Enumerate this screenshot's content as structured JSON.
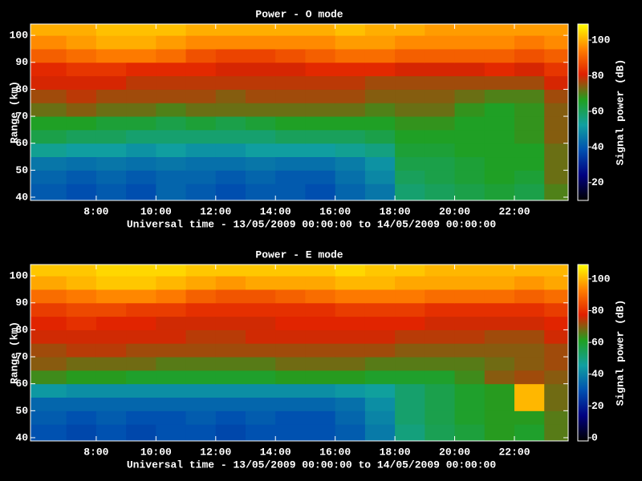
{
  "chart_data": [
    {
      "type": "heatmap",
      "title": "Power - O mode",
      "xlabel": "Universal time - 13/05/2009 00:00:00 to 14/05/2009 00:00:00",
      "ylabel": "Range (km)",
      "colorbar_label": "Signal power (dB)",
      "xlim": [
        5.8,
        23.8
      ],
      "ylim": [
        38.8,
        104.2
      ],
      "clim": [
        10,
        109
      ],
      "xticks": [
        {
          "value": 8,
          "label": "8:00"
        },
        {
          "value": 10,
          "label": "10:00"
        },
        {
          "value": 12,
          "label": "12:00"
        },
        {
          "value": 14,
          "label": "14:00"
        },
        {
          "value": 16,
          "label": "16:00"
        },
        {
          "value": 18,
          "label": "18:00"
        },
        {
          "value": 20,
          "label": "20:00"
        },
        {
          "value": 22,
          "label": "22:00"
        }
      ],
      "yticks": [
        40,
        50,
        60,
        70,
        80,
        90,
        100
      ],
      "cticks": [
        20,
        40,
        60,
        80,
        100
      ],
      "colormap": [
        "#000000",
        "#000080",
        "#0050b0",
        "#10a0a0",
        "#20a020",
        "#e02000",
        "#ff8000",
        "#ffff00"
      ],
      "xbins": [
        5.8,
        7,
        8,
        9,
        10,
        11,
        12,
        13,
        14,
        15,
        16,
        17,
        18,
        19,
        20,
        21,
        22,
        23,
        23.8
      ],
      "ybins": [
        38.8,
        45,
        50,
        55,
        60,
        65,
        70,
        75,
        80,
        85,
        90,
        95,
        100,
        104.2
      ],
      "z": [
        [
          40,
          38,
          40,
          38,
          42,
          40,
          38,
          40,
          40,
          38,
          42,
          45,
          58,
          60,
          62,
          64,
          62,
          70
        ],
        [
          42,
          40,
          42,
          40,
          42,
          42,
          40,
          42,
          40,
          40,
          44,
          48,
          60,
          62,
          64,
          66,
          64,
          72
        ],
        [
          45,
          44,
          45,
          44,
          45,
          44,
          44,
          45,
          44,
          44,
          46,
          50,
          62,
          62,
          64,
          66,
          66,
          72
        ],
        [
          54,
          52,
          52,
          50,
          52,
          50,
          50,
          52,
          52,
          52,
          54,
          56,
          64,
          64,
          66,
          66,
          66,
          72
        ],
        [
          62,
          60,
          60,
          58,
          58,
          58,
          58,
          58,
          60,
          60,
          60,
          62,
          66,
          66,
          66,
          66,
          68,
          74
        ],
        [
          66,
          66,
          64,
          64,
          62,
          64,
          62,
          64,
          66,
          66,
          66,
          66,
          68,
          68,
          66,
          66,
          68,
          74
        ],
        [
          72,
          74,
          72,
          72,
          70,
          72,
          72,
          72,
          72,
          72,
          72,
          70,
          72,
          72,
          68,
          66,
          68,
          74
        ],
        [
          76,
          78,
          76,
          76,
          76,
          76,
          74,
          76,
          76,
          76,
          76,
          74,
          74,
          74,
          72,
          70,
          70,
          76
        ],
        [
          80,
          80,
          80,
          78,
          78,
          78,
          78,
          78,
          78,
          78,
          78,
          76,
          76,
          76,
          76,
          76,
          76,
          80
        ],
        [
          82,
          84,
          84,
          82,
          82,
          82,
          80,
          80,
          80,
          82,
          82,
          82,
          80,
          80,
          80,
          82,
          80,
          84
        ],
        [
          90,
          92,
          94,
          94,
          92,
          88,
          86,
          86,
          88,
          90,
          92,
          92,
          90,
          90,
          90,
          90,
          88,
          90
        ],
        [
          96,
          98,
          100,
          100,
          98,
          96,
          96,
          96,
          96,
          96,
          98,
          98,
          96,
          96,
          96,
          96,
          94,
          96
        ],
        [
          100,
          100,
          102,
          102,
          102,
          100,
          100,
          100,
          100,
          100,
          102,
          100,
          100,
          98,
          98,
          98,
          98,
          98
        ]
      ]
    },
    {
      "type": "heatmap",
      "title": "Power - E mode",
      "xlabel": "Universal time - 13/05/2009 00:00:00 to 14/05/2009 00:00:00",
      "ylabel": "Range (km)",
      "colorbar_label": "Signal power (dB)",
      "xlim": [
        5.8,
        23.8
      ],
      "ylim": [
        38.8,
        104.2
      ],
      "clim": [
        -2,
        109
      ],
      "xticks": [
        {
          "value": 8,
          "label": "8:00"
        },
        {
          "value": 10,
          "label": "10:00"
        },
        {
          "value": 12,
          "label": "12:00"
        },
        {
          "value": 14,
          "label": "14:00"
        },
        {
          "value": 16,
          "label": "16:00"
        },
        {
          "value": 18,
          "label": "18:00"
        },
        {
          "value": 20,
          "label": "20:00"
        },
        {
          "value": 22,
          "label": "22:00"
        }
      ],
      "yticks": [
        40,
        50,
        60,
        70,
        80,
        90,
        100
      ],
      "cticks": [
        0,
        20,
        40,
        60,
        80,
        100
      ],
      "colormap": [
        "#000000",
        "#000080",
        "#0050b0",
        "#10a0a0",
        "#20a020",
        "#e02000",
        "#ff8000",
        "#ffff00"
      ],
      "xbins": [
        5.8,
        7,
        8,
        9,
        10,
        11,
        12,
        13,
        14,
        15,
        16,
        17,
        18,
        19,
        20,
        21,
        22,
        23,
        23.8
      ],
      "ybins": [
        38.8,
        45,
        50,
        55,
        60,
        65,
        70,
        75,
        80,
        85,
        90,
        95,
        100,
        104.2
      ],
      "z": [
        [
          30,
          28,
          30,
          28,
          30,
          30,
          28,
          30,
          30,
          30,
          32,
          38,
          50,
          55,
          58,
          62,
          60,
          66
        ],
        [
          32,
          30,
          32,
          30,
          30,
          32,
          30,
          32,
          30,
          30,
          34,
          40,
          52,
          56,
          60,
          62,
          62,
          66
        ],
        [
          34,
          34,
          34,
          34,
          34,
          34,
          34,
          34,
          34,
          34,
          36,
          42,
          52,
          56,
          60,
          62,
          100,
          68
        ],
        [
          44,
          42,
          42,
          42,
          42,
          42,
          42,
          42,
          42,
          42,
          44,
          46,
          52,
          56,
          60,
          62,
          100,
          68
        ],
        [
          64,
          62,
          62,
          60,
          60,
          60,
          60,
          60,
          62,
          62,
          62,
          60,
          60,
          60,
          64,
          70,
          72,
          70
        ],
        [
          70,
          68,
          68,
          68,
          66,
          66,
          66,
          66,
          68,
          68,
          68,
          66,
          66,
          66,
          66,
          68,
          70,
          72
        ],
        [
          72,
          74,
          74,
          72,
          72,
          72,
          72,
          72,
          72,
          72,
          72,
          72,
          70,
          70,
          70,
          70,
          70,
          72
        ],
        [
          76,
          76,
          76,
          76,
          76,
          74,
          74,
          76,
          76,
          76,
          76,
          76,
          74,
          74,
          74,
          72,
          72,
          76
        ],
        [
          78,
          80,
          78,
          78,
          76,
          76,
          76,
          76,
          78,
          78,
          78,
          78,
          78,
          76,
          76,
          76,
          76,
          78
        ],
        [
          82,
          84,
          84,
          82,
          82,
          80,
          80,
          80,
          80,
          80,
          82,
          82,
          82,
          80,
          80,
          80,
          80,
          82
        ],
        [
          90,
          92,
          94,
          94,
          92,
          88,
          86,
          86,
          88,
          90,
          92,
          92,
          92,
          90,
          90,
          90,
          88,
          90
        ],
        [
          98,
          100,
          102,
          102,
          100,
          98,
          96,
          98,
          98,
          98,
          100,
          100,
          98,
          98,
          98,
          98,
          96,
          98
        ],
        [
          102,
          102,
          104,
          104,
          104,
          102,
          102,
          102,
          102,
          102,
          104,
          102,
          102,
          100,
          100,
          100,
          100,
          100
        ]
      ]
    }
  ]
}
